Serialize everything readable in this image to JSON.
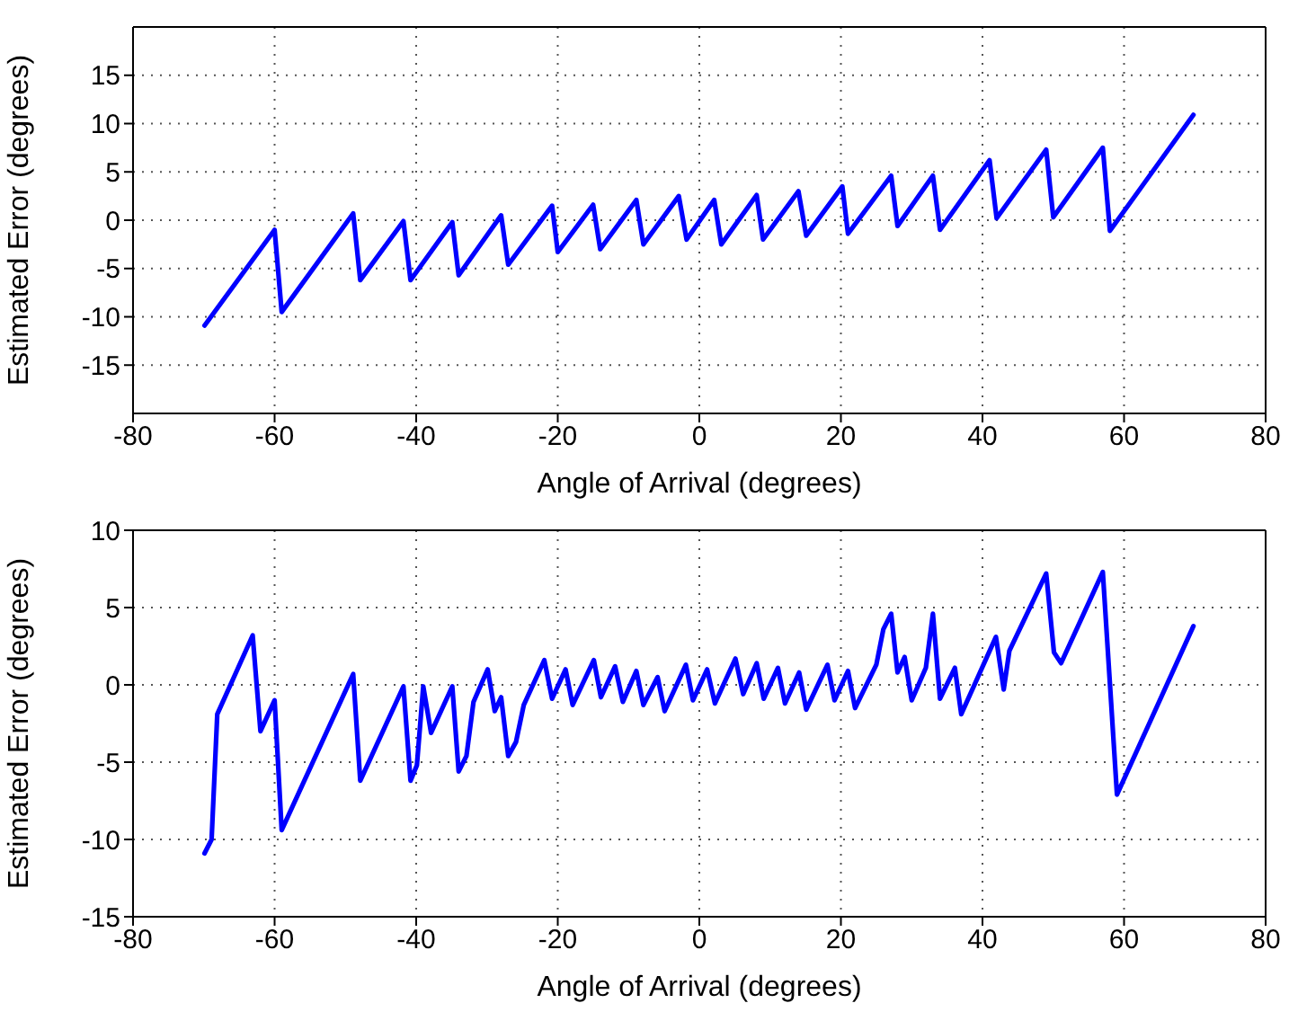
{
  "chart_data": [
    {
      "type": "line",
      "xlabel": "Angle of Arrival (degrees)",
      "ylabel": "Estimated Error (degrees)",
      "color": "#0000ff",
      "grid": true,
      "xlim": [
        -80,
        80
      ],
      "xticks": [
        -80,
        -60,
        -40,
        -20,
        0,
        20,
        40,
        60,
        80
      ],
      "ylim": [
        -20,
        20
      ],
      "yticks": [
        -15,
        -10,
        -5,
        0,
        5,
        10,
        15
      ],
      "x": [
        -69.9,
        -60,
        -59,
        -48.9,
        -47.9,
        -41.8,
        -40.8,
        -34.9,
        -34,
        -28,
        -27,
        -20.8,
        -20,
        -15,
        -14,
        -8.9,
        -7.9,
        -2.9,
        -1.8,
        2.1,
        3.1,
        8.1,
        9,
        14,
        15.1,
        20.2,
        21,
        27.1,
        28,
        33,
        34,
        41,
        42,
        49,
        50,
        57,
        58,
        69.8
      ],
      "values": [
        -10.9,
        -1,
        -9.5,
        0.7,
        -6.2,
        -0.1,
        -6.2,
        -0.2,
        -5.7,
        0.5,
        -4.6,
        1.5,
        -3.3,
        1.6,
        -3,
        2.1,
        -2.5,
        2.5,
        -2,
        2.1,
        -2.5,
        2.6,
        -2,
        3,
        -1.6,
        3.5,
        -1.4,
        4.6,
        -0.6,
        4.6,
        -1,
        6.2,
        0.2,
        7.3,
        0.3,
        7.5,
        -1.1,
        10.9
      ]
    },
    {
      "type": "line",
      "xlabel": "Angle of Arrival (degrees)",
      "ylabel": "Estimated Error (degrees)",
      "color": "#0000ff",
      "grid": true,
      "xlim": [
        -80,
        80
      ],
      "xticks": [
        -80,
        -60,
        -40,
        -20,
        0,
        20,
        40,
        60,
        80
      ],
      "ylim": [
        -15,
        10
      ],
      "yticks": [
        -15,
        -10,
        -5,
        0,
        5,
        10
      ],
      "x": [
        -69.9,
        -68.9,
        -68.1,
        -63.1,
        -62,
        -60,
        -59,
        -48.9,
        -47.9,
        -41.8,
        -40.8,
        -39.9,
        -39,
        -37.9,
        -34.9,
        -34,
        -32.9,
        -31.9,
        -29.9,
        -28.9,
        -28,
        -27,
        -25.9,
        -24.8,
        -21.9,
        -20.8,
        -18.9,
        -17.9,
        -14.9,
        -13.9,
        -11.9,
        -10.8,
        -8.9,
        -7.9,
        -5.9,
        -4.9,
        -1.9,
        -0.9,
        1.1,
        2.2,
        5.1,
        6.2,
        8.1,
        9.1,
        11.1,
        12.1,
        14.1,
        15.1,
        18.1,
        19.1,
        21,
        22,
        25,
        26,
        27.1,
        28,
        29,
        30,
        32,
        33,
        34,
        36.1,
        37,
        41.9,
        43,
        43.8,
        49,
        50.1,
        51.1,
        57,
        59,
        69.8
      ],
      "values": [
        -10.9,
        -10,
        -1.9,
        3.2,
        -3,
        -1,
        -9.4,
        0.7,
        -6.2,
        -0.1,
        -6.2,
        -5.2,
        -0.1,
        -3.1,
        -0.1,
        -5.6,
        -4.6,
        -1.1,
        1,
        -1.7,
        -0.8,
        -4.6,
        -3.7,
        -1.3,
        1.6,
        -0.9,
        1,
        -1.3,
        1.6,
        -0.8,
        1.2,
        -1.1,
        0.9,
        -1.3,
        0.5,
        -1.7,
        1.3,
        -1,
        1,
        -1.2,
        1.7,
        -0.6,
        1.4,
        -0.9,
        1.1,
        -1.2,
        0.8,
        -1.6,
        1.3,
        -1,
        0.9,
        -1.5,
        1.3,
        3.6,
        4.6,
        0.8,
        1.8,
        -1,
        1.1,
        4.6,
        -0.9,
        1.1,
        -1.9,
        3.1,
        -0.3,
        2.2,
        7.2,
        2.1,
        1.4,
        7.3,
        -7.1,
        3.8
      ]
    }
  ]
}
